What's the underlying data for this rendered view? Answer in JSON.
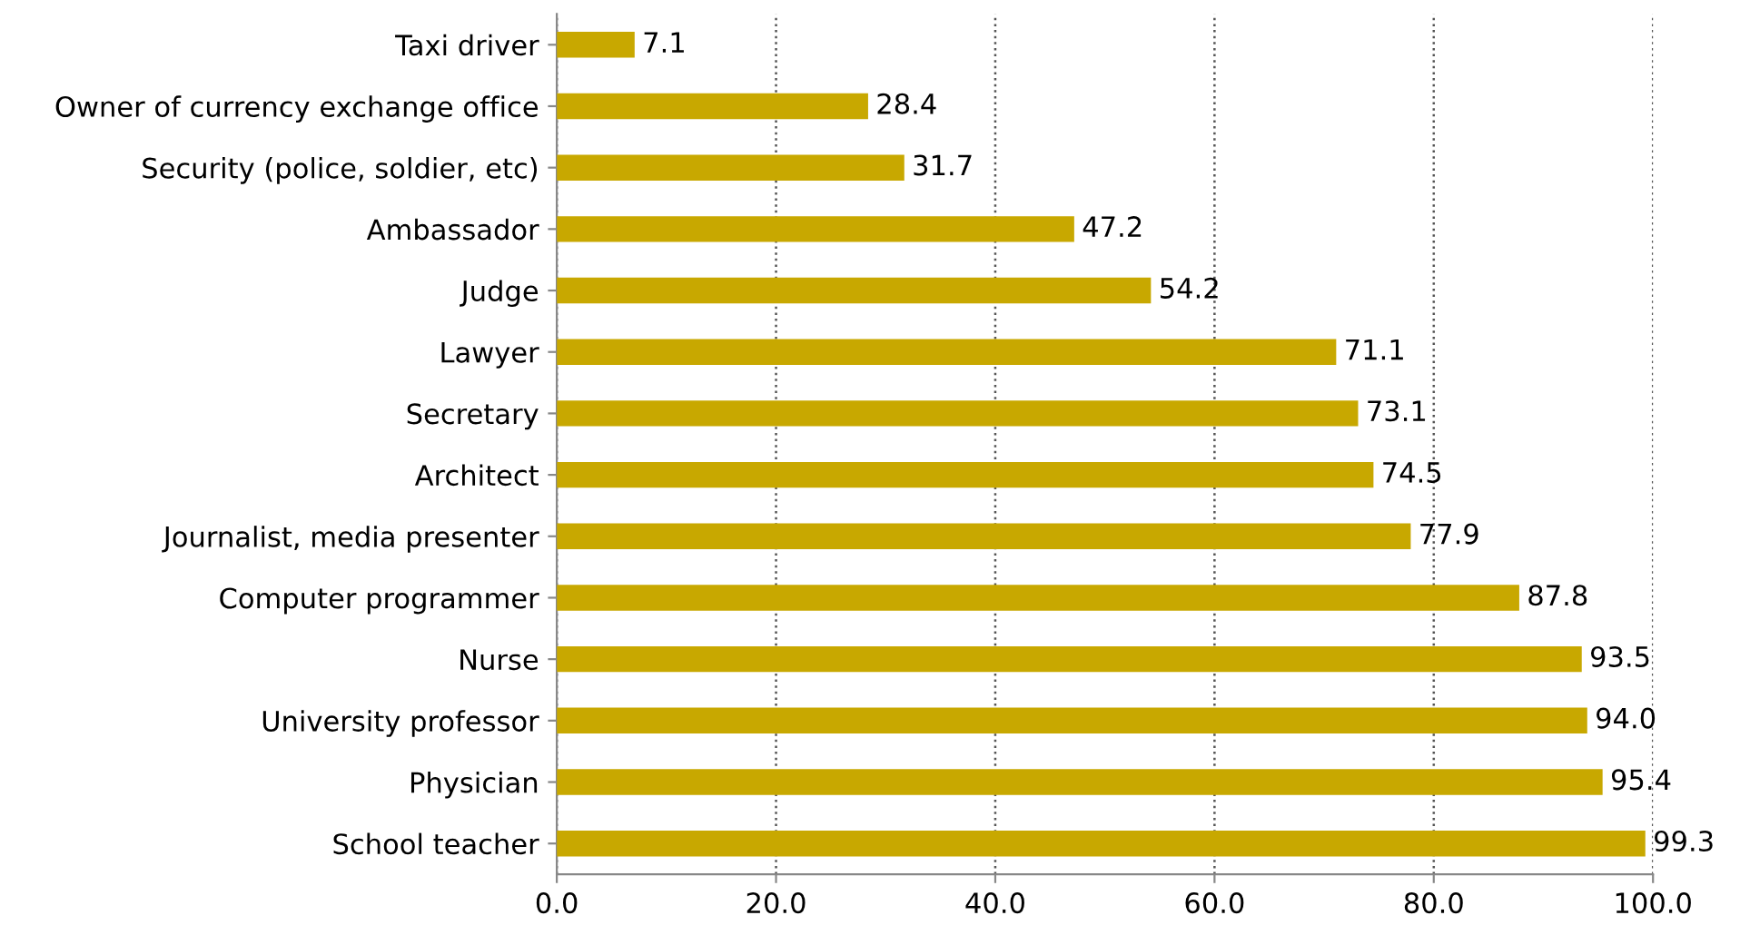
{
  "chart_data": {
    "type": "bar",
    "orientation": "horizontal",
    "categories": [
      "Taxi driver",
      "Owner of currency exchange office",
      "Security (police, soldier, etc)",
      "Ambassador",
      "Judge",
      "Lawyer",
      "Secretary",
      "Architect",
      "Journalist, media presenter",
      "Computer programmer",
      "Nurse",
      "University professor",
      "Physician",
      "School teacher"
    ],
    "values": [
      7.1,
      28.4,
      31.7,
      47.2,
      54.2,
      71.1,
      73.1,
      74.5,
      77.9,
      87.8,
      93.5,
      94.0,
      95.4,
      99.3
    ],
    "value_labels": [
      "7.1",
      "28.4",
      "31.7",
      "47.2",
      "54.2",
      "71.1",
      "73.1",
      "74.5",
      "77.9",
      "87.8",
      "93.5",
      "94.0",
      "95.4",
      "99.3"
    ],
    "color": "#c8a800",
    "xlim": [
      0,
      100
    ],
    "xticks": [
      {
        "value": 0,
        "label": "0.0"
      },
      {
        "value": 20,
        "label": "20.0"
      },
      {
        "value": 40,
        "label": "40.0"
      },
      {
        "value": 60,
        "label": "60.0"
      },
      {
        "value": 80,
        "label": "80.0"
      },
      {
        "value": 100,
        "label": "100.0"
      }
    ],
    "grid": "x",
    "line_style": "dotted"
  }
}
